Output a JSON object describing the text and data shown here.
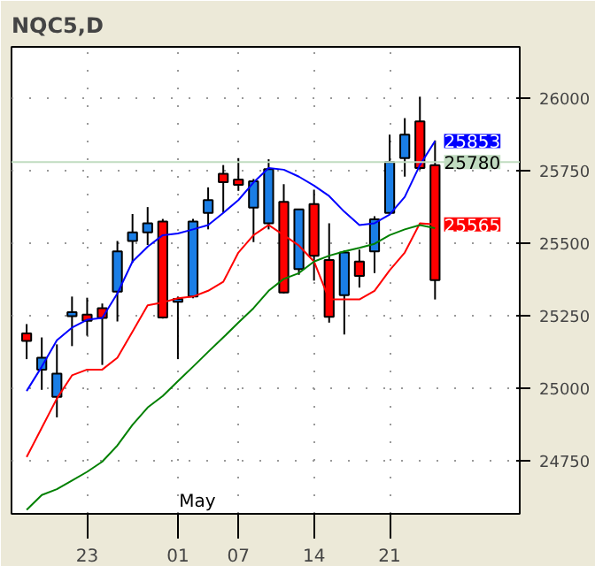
{
  "chart_data": {
    "type": "candlestick",
    "title": "NQC5,D",
    "categories": [
      null,
      null,
      null,
      null,
      "23",
      null,
      null,
      null,
      null,
      null,
      "01",
      null,
      null,
      null,
      "07",
      null,
      null,
      null,
      null,
      "14",
      null,
      null,
      null,
      null,
      "21",
      null,
      null,
      null
    ],
    "ohlc": [
      [
        25189,
        25221,
        25100,
        25163
      ],
      [
        25064,
        25175,
        24994,
        25105
      ],
      [
        24970,
        25151,
        24899,
        25050
      ],
      [
        25248,
        25316,
        25145,
        25262
      ],
      [
        25254,
        25312,
        25181,
        25232
      ],
      [
        25276,
        25292,
        25080,
        25242
      ],
      [
        25333,
        25508,
        25230,
        25472
      ],
      [
        25508,
        25601,
        25433,
        25538
      ],
      [
        25538,
        25625,
        25494,
        25569
      ],
      [
        25575,
        25584,
        25240,
        25244
      ],
      [
        25298,
        25316,
        25100,
        25308
      ],
      [
        25316,
        25584,
        25310,
        25575
      ],
      [
        25605,
        25693,
        25548,
        25649
      ],
      [
        25740,
        25770,
        25605,
        25711
      ],
      [
        25720,
        25794,
        25681,
        25702
      ],
      [
        25623,
        25722,
        25504,
        25714
      ],
      [
        25569,
        25790,
        25548,
        25756
      ],
      [
        25643,
        25704,
        25327,
        25330
      ],
      [
        25411,
        25617,
        25391,
        25617
      ],
      [
        25635,
        25685,
        25371,
        25457
      ],
      [
        25442,
        25569,
        25226,
        25246
      ],
      [
        25321,
        25475,
        25185,
        25468
      ],
      [
        25437,
        25478,
        25347,
        25387
      ],
      [
        25472,
        25593,
        25397,
        25583
      ],
      [
        25605,
        25875,
        25600,
        25780
      ],
      [
        25794,
        25932,
        25730,
        25875
      ],
      [
        25921,
        26006,
        25754,
        25760
      ],
      [
        25770,
        25855,
        25306,
        25373
      ]
    ],
    "colors": [
      "#ff0000",
      "#1a7ee6",
      "#1a7ee6",
      "#1a7ee6",
      "#ff0000",
      "#ff0000",
      "#1a7ee6",
      "#1a7ee6",
      "#1a7ee6",
      "#ff0000",
      "#1a7ee6",
      "#1a7ee6",
      "#1a7ee6",
      "#ff0000",
      "#ff0000",
      "#1a7ee6",
      "#1a7ee6",
      "#ff0000",
      "#1a7ee6",
      "#ff0000",
      "#ff0000",
      "#1a7ee6",
      "#ff0000",
      "#1a7ee6",
      "#1a7ee6",
      "#1a7ee6",
      "#ff0000",
      "#ff0000"
    ],
    "series": [
      {
        "type": "line",
        "color": "#0000ff",
        "value_labels": [
          null,
          null,
          null,
          null,
          null,
          null,
          null,
          null,
          null,
          null,
          null,
          null,
          null,
          null,
          null,
          null,
          null,
          null,
          null,
          null,
          null,
          null,
          null,
          null,
          null,
          null,
          null,
          "25853"
        ],
        "values": [
          24990,
          25074,
          25165,
          25209,
          25236,
          25242,
          25327,
          25437,
          25488,
          25528,
          25534,
          25548,
          25563,
          25605,
          25649,
          25710,
          25760,
          25754,
          25730,
          25699,
          25663,
          25609,
          25563,
          25569,
          25599,
          25660,
          25770,
          25853
        ]
      },
      {
        "type": "line",
        "color": "#ff0000",
        "value_labels": [
          null,
          null,
          null,
          null,
          null,
          null,
          null,
          null,
          null,
          null,
          null,
          null,
          null,
          null,
          null,
          null,
          null,
          null,
          null,
          null,
          null,
          null,
          null,
          null,
          null,
          null,
          null,
          "25565"
        ],
        "values": [
          24762,
          24863,
          24964,
          25044,
          25064,
          25064,
          25105,
          25195,
          25286,
          25296,
          25310,
          25316,
          25336,
          25367,
          25468,
          25528,
          25563,
          25528,
          25492,
          25437,
          25306,
          25306,
          25306,
          25336,
          25407,
          25468,
          25569,
          25565
        ]
      },
      {
        "type": "line",
        "color": "#008000",
        "values": [
          24580,
          24631,
          24651,
          24681,
          24711,
          24746,
          24802,
          24873,
          24933,
          24973,
          25024,
          25074,
          25125,
          25175,
          25226,
          25276,
          25336,
          25377,
          25397,
          25437,
          25457,
          25472,
          25484,
          25498,
          25528,
          25548,
          25563,
          25552
        ]
      }
    ],
    "ylim": [
      24566,
      26178
    ],
    "yticks": [
      24750,
      25000,
      25250,
      25500,
      25750,
      26000
    ],
    "grid": true,
    "line_style": "solid",
    "marker": "none",
    "ref_lines": [
      {
        "axis": "y",
        "value": 25780,
        "label": "25780",
        "color": "#c0dcc0"
      }
    ],
    "annotations": [
      "May"
    ]
  }
}
